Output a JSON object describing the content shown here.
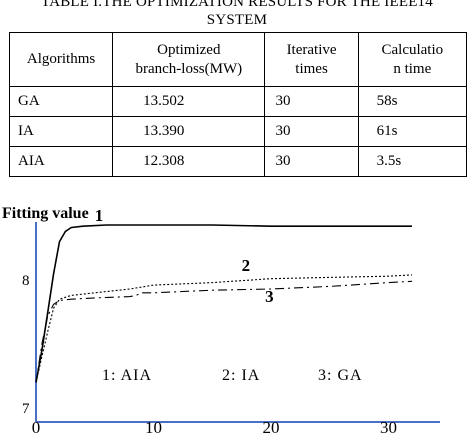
{
  "caption": {
    "line1": "TABLE I.THE OPTIMIZATION RESULTS FOR THE IEEE14",
    "line2": "SYSTEM"
  },
  "table": {
    "headers": [
      [
        "Algorithms"
      ],
      [
        "Optimized",
        "branch-loss(MW)"
      ],
      [
        "Iterative",
        "times"
      ],
      [
        "Calculatio",
        "n time"
      ]
    ],
    "rows": [
      [
        "GA",
        "13.502",
        "30",
        "58s"
      ],
      [
        "IA",
        "13.390",
        "30",
        "61s"
      ],
      [
        "AIA",
        "12.308",
        "30",
        "3.5s"
      ]
    ]
  },
  "chart_data": {
    "type": "line",
    "ylabel": "Fitting value",
    "xlim": [
      0,
      32
    ],
    "ylim": [
      7,
      8.5
    ],
    "x_ticks": [
      "0",
      "10",
      "20",
      "30"
    ],
    "y_ticks": [
      "7",
      "8"
    ],
    "series_markers": [
      "1",
      "2",
      "3"
    ],
    "legend_items": [
      "1: AIA",
      "2: IA",
      "3: GA"
    ],
    "series": [
      {
        "x": [
          0,
          0.5,
          1,
          1.5,
          2,
          2.5,
          3,
          4,
          6,
          10,
          15,
          20,
          25,
          30,
          32
        ],
        "values": [
          7.2,
          7.45,
          7.75,
          8.05,
          8.3,
          8.38,
          8.41,
          8.42,
          8.43,
          8.43,
          8.43,
          8.42,
          8.42,
          8.42,
          8.42
        ]
      },
      {
        "x": [
          0,
          0.5,
          1,
          1.5,
          2,
          3,
          5,
          8,
          10,
          15,
          20,
          25,
          30,
          32
        ],
        "values": [
          7.2,
          7.4,
          7.6,
          7.78,
          7.85,
          7.88,
          7.9,
          7.93,
          7.96,
          7.98,
          8.01,
          8.02,
          8.03,
          8.04
        ]
      },
      {
        "x": [
          0,
          0.5,
          1,
          1.5,
          2,
          3,
          5,
          8,
          8.5,
          9,
          10,
          15,
          20,
          25,
          30,
          32
        ],
        "values": [
          7.2,
          7.5,
          7.72,
          7.81,
          7.84,
          7.85,
          7.86,
          7.87,
          7.88,
          7.9,
          7.9,
          7.92,
          7.93,
          7.95,
          7.98,
          7.99
        ]
      }
    ],
    "series_styles": [
      {
        "stroke": "#000000",
        "dash": "",
        "width": 1.6
      },
      {
        "stroke": "#000000",
        "dash": "2,2",
        "width": 1.1
      },
      {
        "stroke": "#000000",
        "dash": "9,4,2,4",
        "width": 1.1
      }
    ]
  }
}
